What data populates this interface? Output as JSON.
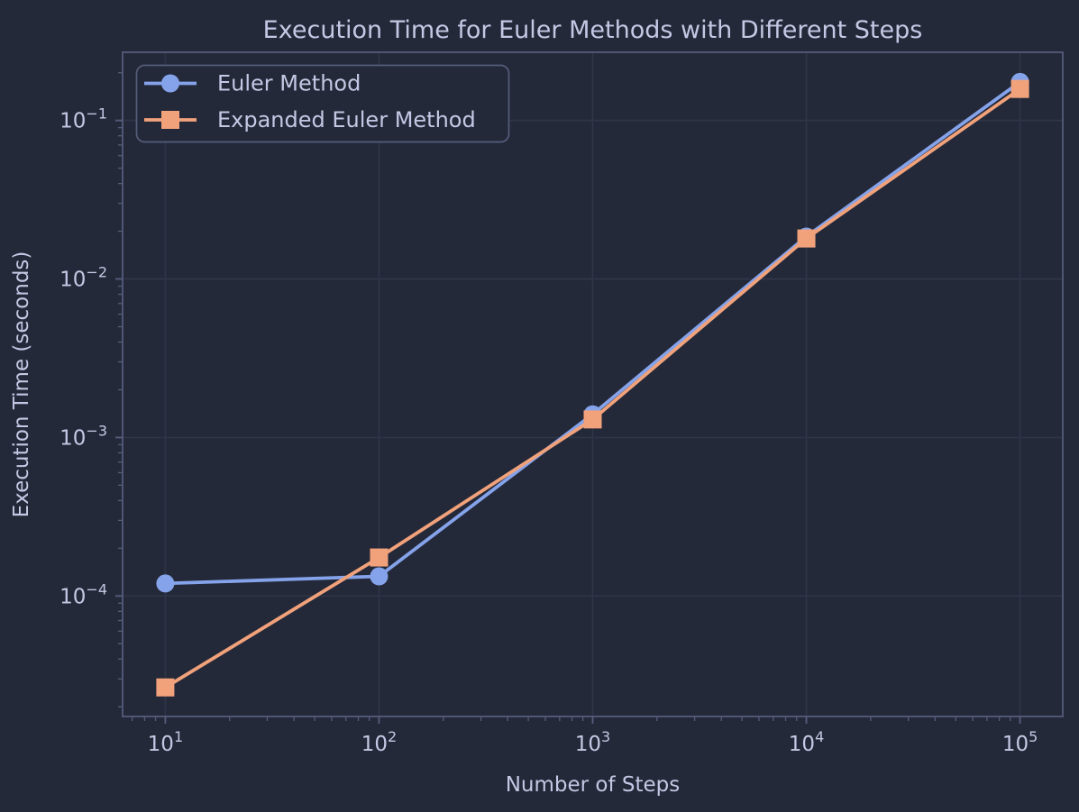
{
  "chart_data": {
    "type": "line",
    "title": "Execution Time for Euler Methods with Different Steps",
    "xlabel": "Number of Steps",
    "ylabel": "Execution Time (seconds)",
    "x_scale": "log",
    "y_scale": "log",
    "grid": true,
    "legend_position": "upper left",
    "x": [
      10,
      100,
      1000,
      10000,
      100000
    ],
    "series": [
      {
        "name": "Euler Method",
        "marker": "circle",
        "color": "#85a3ea",
        "values": [
          0.00012,
          0.000133,
          0.0014,
          0.0185,
          0.175
        ]
      },
      {
        "name": "Expanded Euler Method",
        "marker": "square",
        "color": "#f1a27b",
        "values": [
          2.65e-05,
          0.000175,
          0.0013,
          0.018,
          0.158
        ]
      }
    ],
    "tick_label_base": "10",
    "x_tick_exponents": [
      1,
      2,
      3,
      4,
      5
    ],
    "y_tick_exponents": [
      -1,
      -2,
      -3,
      -4
    ],
    "x_log_range": [
      0.8,
      5.2
    ],
    "y_log_range": [
      -4.76,
      -0.57
    ]
  },
  "colors": {
    "background": "#242939",
    "grid": "#2f3548",
    "spine": "#545c7a",
    "tick": "#545c7a",
    "text": "#c3c8e4",
    "legend_border": "#545c7a"
  }
}
